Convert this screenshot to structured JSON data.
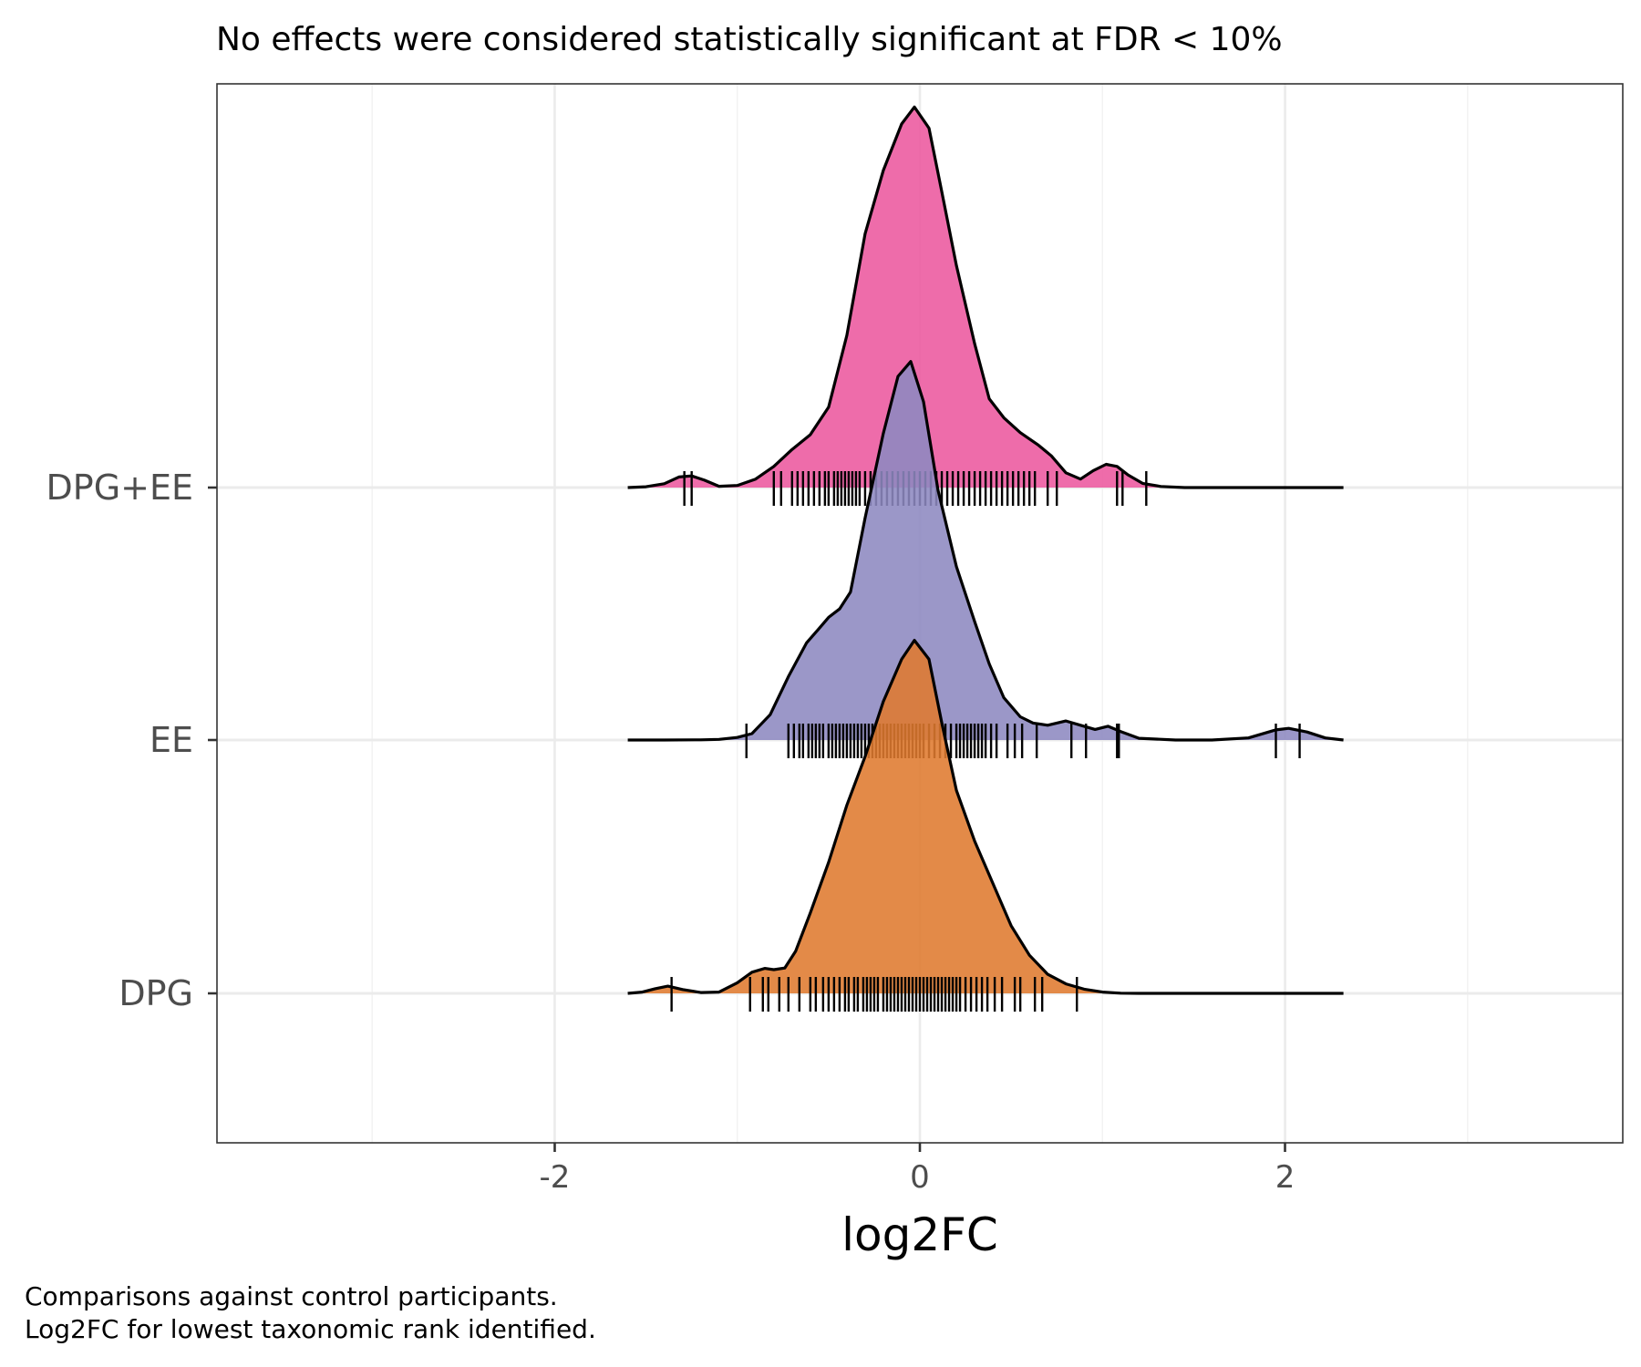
{
  "chart_data": {
    "type": "ridgeline",
    "title": "",
    "subtitle": "No effects were considered statistically significant at FDR < 10%",
    "xlabel": "log2FC",
    "ylabel": "",
    "xlim": [
      -3.85,
      3.85
    ],
    "x_ticks": [
      -2,
      0,
      2
    ],
    "x_tick_labels": [
      "-2",
      "0",
      "2"
    ],
    "categories": [
      "DPG",
      "EE",
      "DPG+EE"
    ],
    "grid": true,
    "legend": "none",
    "caption": [
      "Comparisons against control participants.",
      "Log2FC for lowest taxonomic rank identified."
    ],
    "series": [
      {
        "name": "DPG",
        "color": "#DF7A2F",
        "curve_x": [
          -1.6,
          -1.52,
          -1.45,
          -1.38,
          -1.3,
          -1.2,
          -1.1,
          -1.0,
          -0.92,
          -0.85,
          -0.8,
          -0.74,
          -0.68,
          -0.6,
          -0.5,
          -0.4,
          -0.3,
          -0.2,
          -0.1,
          -0.03,
          0.05,
          0.12,
          0.2,
          0.3,
          0.4,
          0.5,
          0.6,
          0.7,
          0.8,
          0.9,
          1.0,
          1.1,
          1.2,
          1.4,
          1.6,
          2.0,
          2.32
        ],
        "curve_y": [
          0.0,
          0.006,
          0.022,
          0.034,
          0.018,
          0.004,
          0.006,
          0.05,
          0.1,
          0.118,
          0.112,
          0.12,
          0.2,
          0.38,
          0.62,
          0.89,
          1.12,
          1.38,
          1.58,
          1.67,
          1.58,
          1.28,
          0.96,
          0.72,
          0.52,
          0.32,
          0.18,
          0.09,
          0.045,
          0.02,
          0.006,
          0.001,
          0.0,
          0.0,
          0.0,
          0.0,
          0.0
        ],
        "rug": [
          -1.36,
          -0.93,
          -0.86,
          -0.83,
          -0.77,
          -0.72,
          -0.66,
          -0.6,
          -0.57,
          -0.53,
          -0.5,
          -0.47,
          -0.44,
          -0.41,
          -0.39,
          -0.36,
          -0.34,
          -0.31,
          -0.29,
          -0.27,
          -0.25,
          -0.23,
          -0.2,
          -0.18,
          -0.16,
          -0.14,
          -0.12,
          -0.1,
          -0.08,
          -0.06,
          -0.04,
          -0.02,
          0.0,
          0.02,
          0.04,
          0.06,
          0.08,
          0.1,
          0.12,
          0.14,
          0.16,
          0.18,
          0.2,
          0.22,
          0.25,
          0.28,
          0.31,
          0.34,
          0.37,
          0.41,
          0.45,
          0.52,
          0.55,
          0.63,
          0.67,
          0.86
        ]
      },
      {
        "name": "EE",
        "color": "#8D89C0",
        "curve_x": [
          -1.6,
          -1.4,
          -1.2,
          -1.1,
          -1.0,
          -0.92,
          -0.82,
          -0.72,
          -0.62,
          -0.56,
          -0.5,
          -0.44,
          -0.38,
          -0.3,
          -0.2,
          -0.12,
          -0.05,
          0.02,
          0.1,
          0.2,
          0.3,
          0.38,
          0.46,
          0.55,
          0.62,
          0.7,
          0.8,
          0.88,
          0.96,
          1.03,
          1.1,
          1.2,
          1.4,
          1.6,
          1.8,
          1.95,
          2.02,
          2.12,
          2.22,
          2.32
        ],
        "curve_y": [
          0.0,
          0.0,
          0.001,
          0.003,
          0.012,
          0.03,
          0.12,
          0.3,
          0.46,
          0.52,
          0.58,
          0.62,
          0.7,
          1.05,
          1.45,
          1.72,
          1.79,
          1.6,
          1.18,
          0.82,
          0.56,
          0.36,
          0.2,
          0.11,
          0.08,
          0.07,
          0.09,
          0.07,
          0.05,
          0.065,
          0.04,
          0.008,
          0.0,
          0.0,
          0.01,
          0.048,
          0.055,
          0.038,
          0.01,
          0.0
        ],
        "rug": [
          -0.95,
          -0.72,
          -0.69,
          -0.66,
          -0.64,
          -0.61,
          -0.59,
          -0.57,
          -0.55,
          -0.53,
          -0.5,
          -0.48,
          -0.46,
          -0.44,
          -0.42,
          -0.4,
          -0.38,
          -0.36,
          -0.34,
          -0.32,
          -0.3,
          -0.28,
          -0.26,
          -0.24,
          -0.22,
          -0.2,
          -0.18,
          -0.16,
          -0.14,
          -0.12,
          -0.1,
          -0.08,
          -0.06,
          -0.04,
          -0.02,
          0.0,
          0.02,
          0.05,
          0.08,
          0.11,
          0.14,
          0.17,
          0.2,
          0.22,
          0.24,
          0.26,
          0.28,
          0.3,
          0.32,
          0.34,
          0.36,
          0.39,
          0.42,
          0.48,
          0.52,
          0.56,
          0.64,
          0.83,
          0.91,
          1.08,
          1.09,
          1.95,
          2.08
        ]
      },
      {
        "name": "DPG+EE",
        "color": "#EC589E",
        "curve_x": [
          -1.6,
          -1.5,
          -1.4,
          -1.32,
          -1.25,
          -1.18,
          -1.1,
          -1.0,
          -0.9,
          -0.8,
          -0.7,
          -0.6,
          -0.5,
          -0.4,
          -0.3,
          -0.2,
          -0.1,
          -0.03,
          0.05,
          0.12,
          0.2,
          0.3,
          0.38,
          0.46,
          0.55,
          0.65,
          0.72,
          0.8,
          0.88,
          0.95,
          1.02,
          1.08,
          1.14,
          1.22,
          1.32,
          1.45,
          1.6,
          2.0,
          2.32
        ],
        "curve_y": [
          0.0,
          0.004,
          0.018,
          0.05,
          0.055,
          0.035,
          0.006,
          0.01,
          0.04,
          0.1,
          0.18,
          0.25,
          0.38,
          0.72,
          1.2,
          1.5,
          1.72,
          1.8,
          1.7,
          1.4,
          1.05,
          0.68,
          0.42,
          0.33,
          0.26,
          0.2,
          0.15,
          0.07,
          0.04,
          0.08,
          0.11,
          0.1,
          0.06,
          0.02,
          0.005,
          0.0,
          0.0,
          0.0,
          0.0
        ],
        "rug": [
          -1.29,
          -1.25,
          -0.8,
          -0.76,
          -0.7,
          -0.67,
          -0.64,
          -0.61,
          -0.58,
          -0.55,
          -0.52,
          -0.5,
          -0.47,
          -0.45,
          -0.43,
          -0.41,
          -0.39,
          -0.37,
          -0.35,
          -0.33,
          -0.3,
          -0.27,
          -0.24,
          -0.21,
          -0.18,
          -0.15,
          -0.12,
          -0.09,
          -0.06,
          -0.03,
          0.0,
          0.03,
          0.06,
          0.09,
          0.12,
          0.15,
          0.18,
          0.21,
          0.24,
          0.27,
          0.3,
          0.33,
          0.36,
          0.39,
          0.42,
          0.45,
          0.48,
          0.51,
          0.54,
          0.57,
          0.6,
          0.63,
          0.7,
          0.75,
          1.08,
          1.11,
          1.24
        ]
      }
    ]
  }
}
